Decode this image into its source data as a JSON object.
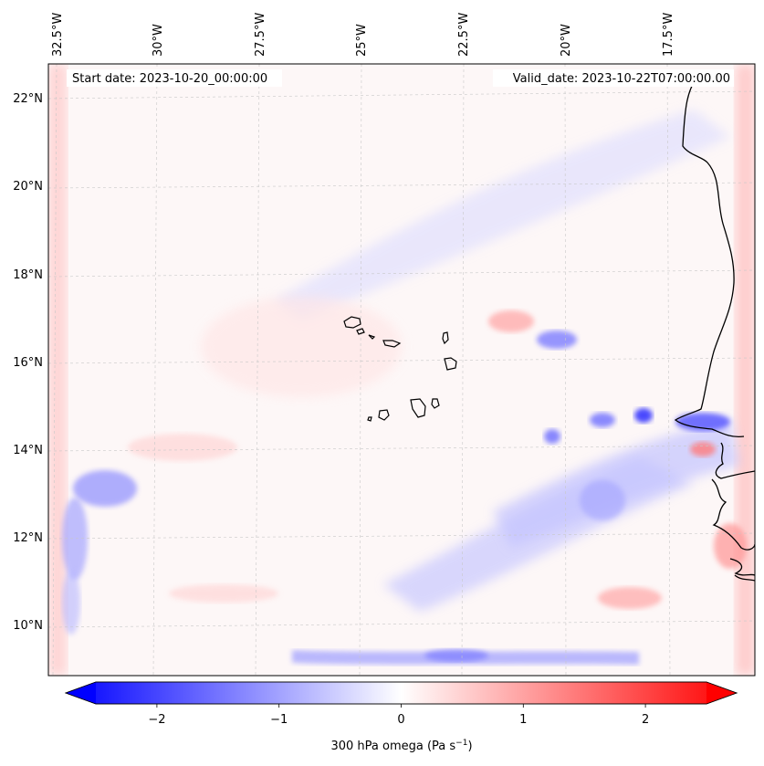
{
  "map": {
    "start_label": "Start date: 2023-10-20_00:00:00",
    "valid_label": "Valid_date: 2023-10-22T07:00:00.00",
    "lon_labels": [
      "32.5°W",
      "30°W",
      "27.5°W",
      "25°W",
      "22.5°W",
      "20°W",
      "17.5°W"
    ],
    "lat_labels": [
      "22°N",
      "20°N",
      "18°N",
      "16°N",
      "14°N",
      "12°N",
      "10°N"
    ],
    "field": "300 hPa omega",
    "colors": {
      "neg": "#0000ff",
      "zero": "#ffffff",
      "pos": "#ff0000",
      "coast": "#000000",
      "grid": "#bbbbbb"
    }
  },
  "colorbar": {
    "ticks": [
      "−2",
      "−1",
      "0",
      "1",
      "2"
    ],
    "tick_values": [
      -2,
      -1,
      0,
      1,
      2
    ],
    "range": [
      -2.5,
      2.5
    ],
    "label_main": "300 hPa omega (Pa s",
    "label_sup": "−1",
    "label_end": ")"
  }
}
